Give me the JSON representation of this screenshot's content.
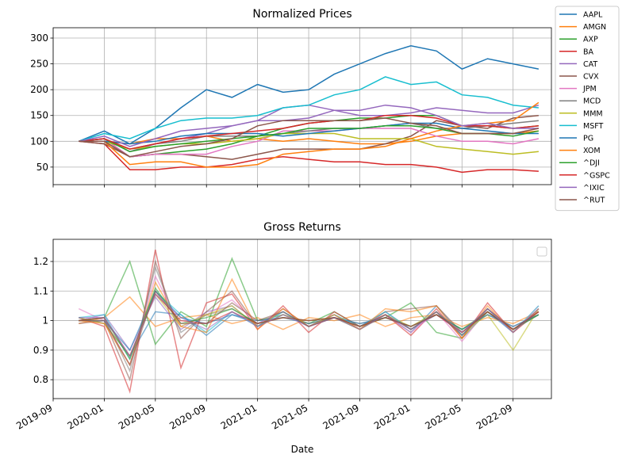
{
  "chart_data": [
    {
      "type": "line",
      "title": "Normalized Prices",
      "grid": true,
      "legend": "outside",
      "x": [
        "2019-11",
        "2020-01",
        "2020-03",
        "2020-05",
        "2020-07",
        "2020-09",
        "2020-11",
        "2021-01",
        "2021-03",
        "2021-05",
        "2021-07",
        "2021-09",
        "2021-11",
        "2022-01",
        "2022-03",
        "2022-05",
        "2022-07",
        "2022-09",
        "2022-11"
      ],
      "xlim": [
        "2019-09",
        "2022-12"
      ],
      "xticks": [
        "2019-09",
        "2020-01",
        "2020-05",
        "2020-09",
        "2021-01",
        "2021-05",
        "2021-09",
        "2022-01",
        "2022-05",
        "2022-09"
      ],
      "ylim": [
        16,
        320
      ],
      "yticks": [
        50,
        100,
        150,
        200,
        250,
        300
      ],
      "series": [
        {
          "name": "AAPL",
          "color": "#1f77b4",
          "values": [
            100,
            120,
            95,
            125,
            165,
            200,
            185,
            210,
            195,
            200,
            230,
            250,
            270,
            285,
            275,
            240,
            260,
            250,
            240
          ]
        },
        {
          "name": "AMGN",
          "color": "#ff7f0e",
          "values": [
            100,
            100,
            95,
            105,
            105,
            110,
            100,
            105,
            100,
            105,
            100,
            95,
            95,
            100,
            110,
            115,
            115,
            115,
            120
          ]
        },
        {
          "name": "AXP",
          "color": "#2ca02c",
          "values": [
            100,
            105,
            70,
            75,
            80,
            85,
            95,
            110,
            125,
            135,
            140,
            145,
            145,
            150,
            150,
            130,
            130,
            125,
            130
          ]
        },
        {
          "name": "BA",
          "color": "#d62728",
          "values": [
            100,
            95,
            45,
            45,
            50,
            50,
            55,
            65,
            70,
            65,
            60,
            60,
            55,
            55,
            50,
            40,
            45,
            45,
            42
          ]
        },
        {
          "name": "CAT",
          "color": "#9467bd",
          "values": [
            100,
            105,
            80,
            95,
            105,
            115,
            130,
            140,
            165,
            170,
            160,
            150,
            150,
            155,
            165,
            160,
            155,
            155,
            170
          ]
        },
        {
          "name": "CVX",
          "color": "#8c564b",
          "values": [
            100,
            95,
            70,
            75,
            75,
            70,
            65,
            75,
            85,
            85,
            85,
            85,
            95,
            110,
            140,
            130,
            125,
            145,
            150
          ]
        },
        {
          "name": "JPM",
          "color": "#e377c2",
          "values": [
            100,
            105,
            70,
            75,
            75,
            75,
            90,
            100,
            120,
            120,
            120,
            125,
            125,
            125,
            110,
            100,
            100,
            95,
            105
          ]
        },
        {
          "name": "MCD",
          "color": "#7f7f7f",
          "values": [
            100,
            100,
            85,
            95,
            100,
            110,
            110,
            110,
            115,
            120,
            125,
            125,
            130,
            135,
            125,
            125,
            130,
            135,
            140
          ]
        },
        {
          "name": "MMM",
          "color": "#bcbd22",
          "values": [
            100,
            100,
            85,
            90,
            95,
            95,
            100,
            105,
            115,
            115,
            115,
            105,
            105,
            105,
            90,
            85,
            80,
            75,
            80
          ]
        },
        {
          "name": "MSFT",
          "color": "#17becf",
          "values": [
            100,
            115,
            105,
            125,
            140,
            145,
            145,
            150,
            165,
            170,
            190,
            200,
            225,
            210,
            215,
            190,
            185,
            170,
            165
          ]
        },
        {
          "name": "PG",
          "color": "#1f77b4",
          "values": [
            100,
            100,
            95,
            100,
            110,
            115,
            115,
            115,
            110,
            115,
            120,
            125,
            130,
            135,
            135,
            125,
            120,
            115,
            115
          ]
        },
        {
          "name": "XOM",
          "color": "#ff7f0e",
          "values": [
            100,
            100,
            55,
            60,
            60,
            50,
            50,
            55,
            75,
            80,
            85,
            85,
            90,
            105,
            120,
            130,
            135,
            140,
            175
          ]
        },
        {
          "name": "^DJI",
          "color": "#2ca02c",
          "values": [
            100,
            105,
            80,
            90,
            95,
            100,
            105,
            110,
            115,
            125,
            125,
            125,
            130,
            130,
            125,
            115,
            115,
            110,
            120
          ]
        },
        {
          "name": "^GSPC",
          "color": "#d62728",
          "values": [
            100,
            105,
            85,
            95,
            105,
            110,
            115,
            120,
            125,
            135,
            140,
            140,
            150,
            150,
            145,
            130,
            130,
            125,
            130
          ]
        },
        {
          "name": "^IXIC",
          "color": "#9467bd",
          "values": [
            100,
            110,
            90,
            105,
            120,
            125,
            130,
            140,
            140,
            145,
            160,
            160,
            170,
            165,
            150,
            130,
            135,
            125,
            125
          ]
        },
        {
          "name": "^RUT",
          "color": "#8c564b",
          "values": [
            100,
            100,
            70,
            80,
            90,
            95,
            105,
            130,
            140,
            140,
            140,
            140,
            145,
            135,
            130,
            115,
            115,
            115,
            125
          ]
        }
      ]
    },
    {
      "type": "line",
      "title": "Gross Returns",
      "xlabel": "Date",
      "grid": true,
      "legend": "upper right",
      "x": [
        "2019-11",
        "2020-01",
        "2020-03",
        "2020-05",
        "2020-07",
        "2020-09",
        "2020-11",
        "2021-01",
        "2021-03",
        "2021-05",
        "2021-07",
        "2021-09",
        "2021-11",
        "2022-01",
        "2022-03",
        "2022-05",
        "2022-07",
        "2022-09",
        "2022-11"
      ],
      "xlim": [
        "2019-09",
        "2022-12"
      ],
      "xticks": [
        "2019-09",
        "2020-01",
        "2020-05",
        "2020-09",
        "2021-01",
        "2021-05",
        "2021-09",
        "2022-01",
        "2022-05",
        "2022-09"
      ],
      "ylim": [
        0.736,
        1.275
      ],
      "yticks": [
        0.8,
        0.9,
        1.0,
        1.1,
        1.2
      ],
      "series": [
        {
          "color": "#1f77b4",
          "values": [
            1.01,
            0.99,
            0.88,
            1.03,
            1.02,
            0.95,
            1.02,
            0.99,
            1.03,
            0.98,
            1.01,
            0.97,
            1.02,
            0.96,
            1.05,
            0.95,
            1.03,
            0.96,
            1.04
          ]
        },
        {
          "color": "#ff7f0e",
          "values": [
            0.99,
            1.01,
            1.08,
            0.98,
            1.01,
            1.02,
            0.99,
            1.01,
            0.97,
            1.01,
            1.0,
            1.02,
            0.98,
            1.01,
            1.02,
            0.98,
            1.01,
            0.99,
            1.03
          ]
        },
        {
          "color": "#2ca02c",
          "values": [
            1.0,
            1.01,
            1.2,
            0.92,
            1.03,
            0.98,
            1.21,
            1.0,
            1.02,
            0.99,
            1.03,
            0.98,
            1.01,
            1.06,
            0.96,
            0.94,
            1.03,
            0.97,
            1.02
          ]
        },
        {
          "color": "#d62728",
          "values": [
            1.01,
            0.98,
            0.76,
            1.24,
            0.84,
            1.06,
            1.09,
            0.97,
            1.05,
            0.96,
            1.03,
            0.98,
            1.02,
            0.95,
            1.04,
            0.94,
            1.06,
            0.96,
            1.03
          ]
        },
        {
          "color": "#9467bd",
          "values": [
            1.0,
            1.02,
            0.9,
            1.08,
            0.97,
            1.03,
            1.05,
            0.98,
            1.02,
            0.99,
            1.01,
            0.98,
            1.03,
            0.97,
            1.02,
            0.96,
            1.04,
            0.97,
            1.02
          ]
        },
        {
          "color": "#8c564b",
          "values": [
            0.99,
            1.0,
            0.8,
            1.2,
            0.94,
            1.03,
            1.1,
            0.98,
            1.04,
            0.98,
            1.02,
            0.97,
            1.03,
            1.04,
            1.05,
            0.96,
            1.03,
            0.97,
            1.03
          ]
        },
        {
          "color": "#e377c2",
          "values": [
            1.04,
            1.0,
            0.85,
            1.15,
            0.98,
            1.02,
            1.07,
            0.99,
            1.03,
            0.98,
            1.01,
            0.98,
            1.02,
            0.96,
            1.03,
            0.93,
            1.04,
            0.96,
            1.05
          ]
        },
        {
          "color": "#7f7f7f",
          "values": [
            1.0,
            1.01,
            0.83,
            1.18,
            0.96,
            1.02,
            1.04,
            0.99,
            1.01,
            1.0,
            1.01,
            0.99,
            1.01,
            0.98,
            1.02,
            0.97,
            1.02,
            0.98,
            1.02
          ]
        },
        {
          "color": "#bcbd22",
          "values": [
            1.01,
            0.99,
            0.88,
            1.09,
            0.98,
            1.02,
            1.05,
            0.98,
            1.02,
            0.99,
            1.01,
            0.97,
            1.02,
            0.98,
            1.03,
            0.96,
            1.02,
            0.9,
            1.04
          ]
        },
        {
          "color": "#17becf",
          "values": [
            1.01,
            1.02,
            0.87,
            1.1,
            1.02,
            0.96,
            1.03,
            0.98,
            1.03,
            0.98,
            1.02,
            0.98,
            1.03,
            0.97,
            1.03,
            0.95,
            1.04,
            0.96,
            1.05
          ]
        },
        {
          "color": "#1f77b4",
          "values": [
            1.0,
            1.0,
            0.9,
            1.1,
            1.01,
            0.99,
            1.02,
            1.0,
            1.01,
            0.99,
            1.01,
            0.99,
            1.01,
            0.98,
            1.02,
            0.97,
            1.02,
            0.98,
            1.02
          ]
        },
        {
          "color": "#ff7f0e",
          "values": [
            1.0,
            0.99,
            0.85,
            1.13,
            0.98,
            0.96,
            1.14,
            0.97,
            1.04,
            0.98,
            1.02,
            0.97,
            1.04,
            1.03,
            1.05,
            0.94,
            1.05,
            0.96,
            1.04
          ]
        },
        {
          "color": "#2ca02c",
          "values": [
            1.0,
            1.01,
            0.87,
            1.11,
            0.99,
            1.01,
            1.04,
            0.99,
            1.01,
            1.0,
            1.01,
            0.98,
            1.01,
            0.98,
            1.02,
            0.97,
            1.03,
            0.97,
            1.02
          ]
        },
        {
          "color": "#d62728",
          "values": [
            1.0,
            1.01,
            0.88,
            1.09,
            1.0,
            0.99,
            1.03,
            0.99,
            1.01,
            1.0,
            1.01,
            0.98,
            1.01,
            0.98,
            1.02,
            0.96,
            1.03,
            0.97,
            1.03
          ]
        },
        {
          "color": "#9467bd",
          "values": [
            1.01,
            1.01,
            0.88,
            1.09,
            1.01,
            0.97,
            1.03,
            0.98,
            1.02,
            0.98,
            1.01,
            0.97,
            1.02,
            0.97,
            1.03,
            0.96,
            1.04,
            0.96,
            1.04
          ]
        },
        {
          "color": "#8c564b",
          "values": [
            1.0,
            1.0,
            0.85,
            1.1,
            0.99,
            0.99,
            1.06,
            1.0,
            1.03,
            0.98,
            1.01,
            0.98,
            1.02,
            0.97,
            1.03,
            0.95,
            1.04,
            0.97,
            1.03
          ]
        }
      ]
    }
  ]
}
